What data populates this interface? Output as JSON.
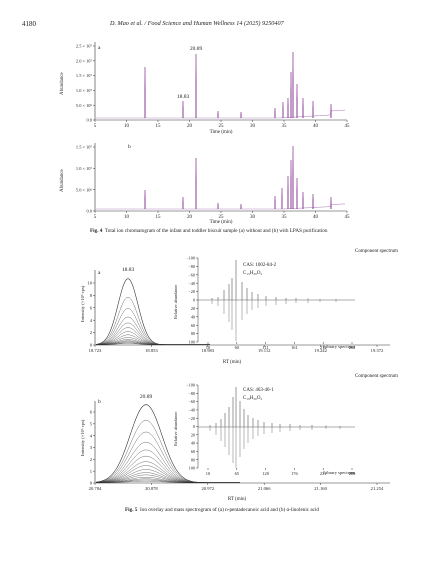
{
  "header": {
    "page_number": "4180",
    "running_title": "D. Mao et al. / Food Science and Human Wellness 14 (2025) 9250407"
  },
  "fig4": {
    "caption_label": "Fig. 4",
    "caption_text": "Total ion chromatogram of the infant and toddler biscuit sample (a) without and (b) with LPAS purification",
    "panel_a": {
      "label": "a",
      "ylabel": "Abundance",
      "y_ticks": [
        "0.0",
        "5.0 × 10⁶",
        "1.0 × 10⁷",
        "1.5 × 10⁷",
        "2.0 × 10⁷",
        "2.5 × 10⁷"
      ],
      "x_ticks": [
        "5",
        "10",
        "15",
        "20",
        "25",
        "30",
        "35",
        "40",
        "45"
      ],
      "xlabel": "Time (min)",
      "annotations": [
        "20.89",
        "18.83"
      ]
    },
    "panel_b": {
      "label": "b",
      "ylabel": "Abundance",
      "y_ticks": [
        "0.0",
        "5.0 × 10⁶",
        "1.0 × 10⁷",
        "1.5 × 10⁷"
      ],
      "x_ticks": [
        "5",
        "10",
        "15",
        "20",
        "25",
        "30",
        "35",
        "40",
        "45"
      ],
      "xlabel": "Time (min)"
    },
    "colors": {
      "trace": "#8a3a96",
      "trace_light": "#b78cc4",
      "axis": "#333333"
    }
  },
  "fig5": {
    "caption_label": "Fig. 5",
    "caption_text": "Ion overlay and mass spectrogram of (a) n-pentadecanoic acid and (b) α-linolenic acid",
    "panel_a": {
      "label": "a",
      "peak_label": "18.83",
      "ylabel": "Intensity (×10⁶ cps)",
      "y_ticks": [
        "0",
        "2",
        "4",
        "6",
        "8",
        "10"
      ],
      "x_ticks": [
        "18.723",
        "18.853",
        "18.983",
        "19.112",
        "19.242",
        "19.372"
      ],
      "xlabel": "RT (min)",
      "component_title": "Component spectrum",
      "inset_ylabel": "Relative abundance",
      "inset_y_ticks": [
        "100",
        "80",
        "60",
        "40",
        "20",
        "0",
        "−20",
        "−40",
        "−60",
        "−80",
        "−100"
      ],
      "inset_x_ticks": [
        "10",
        "60",
        "111",
        "161",
        "212",
        "262"
      ],
      "inset_xlabel": "Library spectrum",
      "cas": "CAS: 1002-84-2",
      "formula": "C₁₅H₃₀O₂"
    },
    "panel_b": {
      "label": "b",
      "peak_label": "20.89",
      "ylabel": "Intensity (×10⁶ cps)",
      "y_ticks": [
        "0",
        "1",
        "2",
        "3",
        "4",
        "5",
        "6"
      ],
      "x_ticks": [
        "20.784",
        "20.878",
        "20.972",
        "21.066",
        "21.160",
        "21.254"
      ],
      "xlabel": "RT (min)",
      "component_title": "Component spectrum",
      "inset_ylabel": "Relative abundance",
      "inset_y_ticks": [
        "100",
        "80",
        "60",
        "40",
        "20",
        "0",
        "−20",
        "−40",
        "−60",
        "−80",
        "−100"
      ],
      "inset_x_ticks": [
        "10",
        "65",
        "120",
        "176",
        "231",
        "286"
      ],
      "inset_xlabel": "Library spectrum",
      "cas": "CAS: 463-40-1",
      "formula": "C₁₈H₃₀O₂"
    }
  }
}
